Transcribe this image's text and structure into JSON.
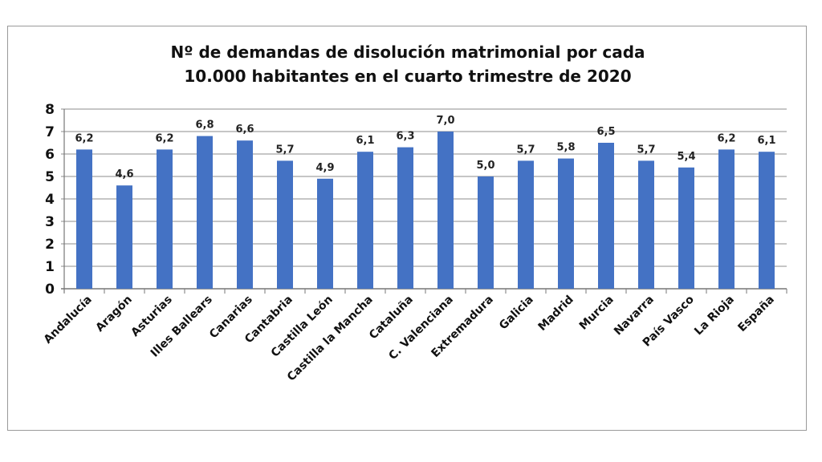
{
  "chart_data": {
    "type": "bar",
    "title_lines": [
      "Nº de demandas de disolución matrimonial por cada",
      "10.000 habitantes en el cuarto trimestre de 2020"
    ],
    "categories": [
      "Andalucía",
      "Aragón",
      "Asturias",
      "Illes Ballears",
      "Canarias",
      "Cantabria",
      "Castilla León",
      "Castilla la Mancha",
      "Cataluña",
      "C. Valenciana",
      "Extremadura",
      "Galicia",
      "Madrid",
      "Murcia",
      "Navarra",
      "País Vasco",
      "La Rioja",
      "España"
    ],
    "values": [
      6.2,
      4.6,
      6.2,
      6.8,
      6.6,
      5.7,
      4.9,
      6.1,
      6.3,
      7.0,
      5.0,
      5.7,
      5.8,
      6.5,
      5.7,
      5.4,
      6.2,
      6.1
    ],
    "data_labels": [
      "6,2",
      "4,6",
      "6,2",
      "6,8",
      "6,6",
      "5,7",
      "4,9",
      "6,1",
      "6,3",
      "7,0",
      "5,0",
      "5,7",
      "5,8",
      "6,5",
      "5,7",
      "5,4",
      "6,2",
      "6,1"
    ],
    "y_ticks": [
      "0",
      "1",
      "2",
      "3",
      "4",
      "5",
      "6",
      "7",
      "8"
    ],
    "ylim": [
      0,
      8
    ],
    "grid": true,
    "legend": "none",
    "bar_color": "#4472C4",
    "xlabel": "",
    "ylabel": ""
  }
}
